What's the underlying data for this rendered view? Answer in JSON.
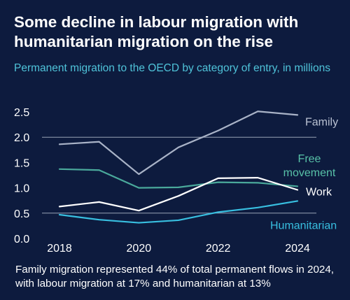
{
  "title": "Some decline in labour migration with humanitarian migration on the rise",
  "subtitle": "Permanent migration to the OECD by category of entry, in millions",
  "caption": "Family migration represented 44% of total permanent flows in 2024, with labour migration at 17% and humanitarian at 13%",
  "colors": {
    "background": "#0d1b3e",
    "title": "#ffffff",
    "subtitle": "#4fc3d9",
    "axis_text": "#ffffff",
    "reference_line": "#9aa3b5"
  },
  "chart_data": {
    "type": "line",
    "x": [
      2018,
      2019,
      2020,
      2021,
      2022,
      2023,
      2024
    ],
    "x_ticks": [
      "2018",
      "2020",
      "2022",
      "2024"
    ],
    "x_tick_values": [
      2018,
      2020,
      2022,
      2024
    ],
    "y_ticks": [
      "0.0",
      "0.5",
      "1.0",
      "1.5",
      "2.0",
      "2.5"
    ],
    "y_tick_values": [
      0,
      0.5,
      1.0,
      1.5,
      2.0,
      2.5
    ],
    "ylim": [
      0,
      2.5
    ],
    "reference_lines": [
      0.5,
      2.0
    ],
    "grid": false,
    "legend": "direct labels at right end of lines",
    "series": [
      {
        "name": "Family",
        "label_lines": [
          "Family"
        ],
        "color": "#a9b3c7",
        "label_color": "#b9c1d2",
        "values": [
          1.86,
          1.91,
          1.27,
          1.8,
          2.13,
          2.51,
          2.44
        ]
      },
      {
        "name": "Free movement",
        "label_lines": [
          "Free",
          "movement"
        ],
        "color": "#4aa99b",
        "label_color": "#58c2a8",
        "values": [
          1.37,
          1.35,
          1.0,
          1.01,
          1.11,
          1.1,
          1.03
        ]
      },
      {
        "name": "Work",
        "label_lines": [
          "Work"
        ],
        "color": "#ffffff",
        "label_color": "#ffffff",
        "values": [
          0.63,
          0.72,
          0.55,
          0.84,
          1.19,
          1.2,
          0.96
        ]
      },
      {
        "name": "Humanitarian",
        "label_lines": [
          "Humanitarian"
        ],
        "color": "#38bfe0",
        "label_color": "#38bfe0",
        "values": [
          0.47,
          0.37,
          0.31,
          0.36,
          0.52,
          0.61,
          0.74
        ]
      }
    ]
  }
}
